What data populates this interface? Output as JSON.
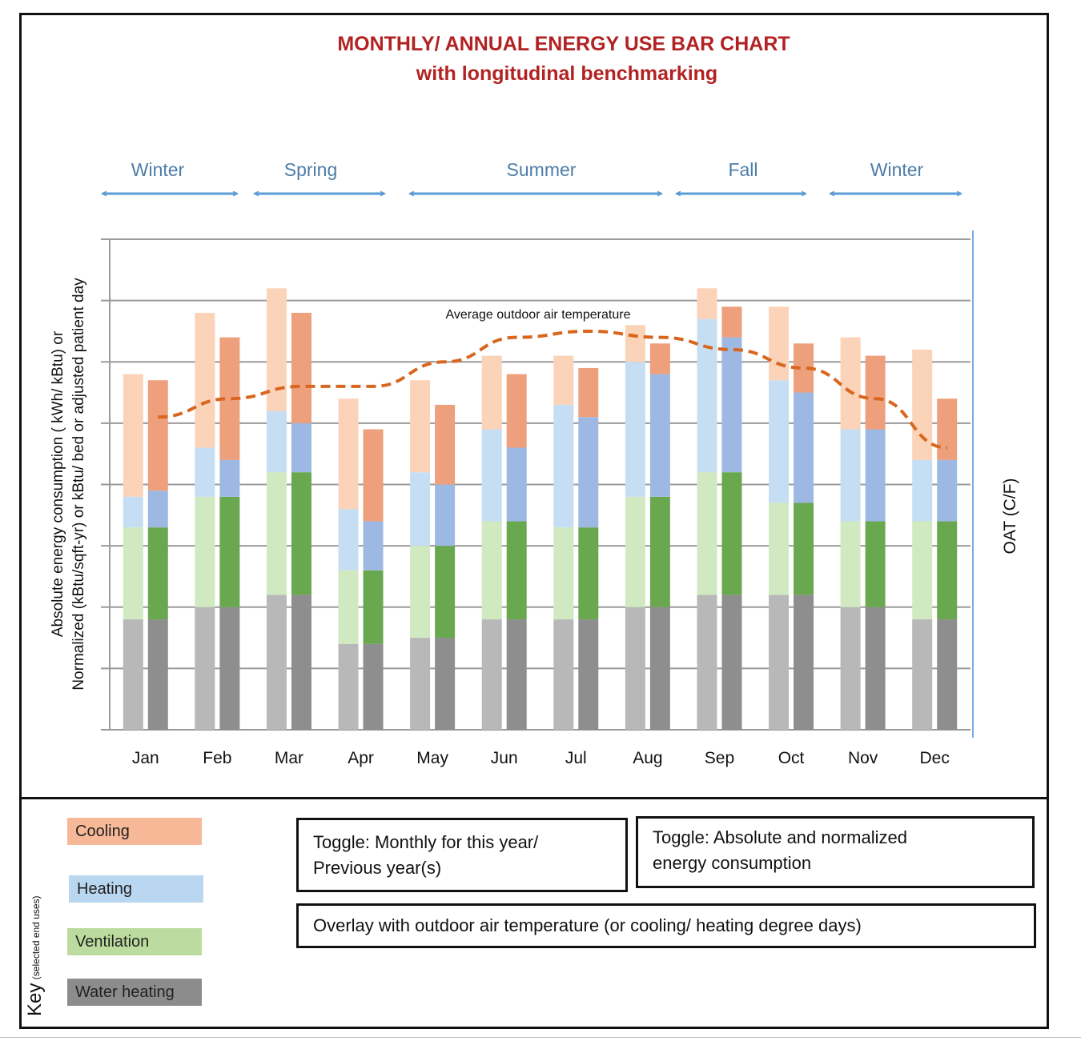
{
  "title": {
    "line1": "MONTHLY/ ANNUAL ENERGY USE BAR CHART",
    "line2": "with longitudinal benchmarking"
  },
  "seasons": [
    {
      "label": "Winter"
    },
    {
      "label": "Spring"
    },
    {
      "label": "Summer"
    },
    {
      "label": "Fall"
    },
    {
      "label": "Winter"
    }
  ],
  "axes": {
    "y_label_line1": "Absolute energy consumption ( kWh/ kBtu) or",
    "y_label_line2": "Normalized (kBtu/sqft-yr) or kBtu/ bed or adjusted patient day",
    "y2_label": "OAT (C/F)"
  },
  "annotation": "Average outdoor air temperature",
  "colors": {
    "cooling_light": "#fbd3b8",
    "cooling_dark": "#ee9f7c",
    "heating_light": "#c6def3",
    "heating_dark": "#9db9e3",
    "ventilation_light": "#d1e9c0",
    "ventilation_dark": "#6aa84f",
    "water_light": "#b8b8b8",
    "water_dark": "#8e8e8e",
    "temperature_line": "#d9661f",
    "season_arrow": "#5b9bd5",
    "title": "#b22222"
  },
  "chart_data": {
    "type": "bar",
    "stacked": true,
    "categories": [
      "Jan",
      "Feb",
      "Mar",
      "Apr",
      "May",
      "Jun",
      "Jul",
      "Aug",
      "Sep",
      "Oct",
      "Nov",
      "Dec"
    ],
    "ylim": [
      0,
      8
    ],
    "grid": true,
    "stack_order": [
      "Water heating",
      "Ventilation",
      "Heating",
      "Cooling"
    ],
    "groups": [
      {
        "name": "previous year",
        "shade": "light",
        "values": [
          [
            1.8,
            1.5,
            0.5,
            2.0
          ],
          [
            2.0,
            1.8,
            0.8,
            2.2
          ],
          [
            2.2,
            2.0,
            1.0,
            2.0
          ],
          [
            1.4,
            1.2,
            1.0,
            1.8
          ],
          [
            1.5,
            1.5,
            1.2,
            1.5
          ],
          [
            1.8,
            1.6,
            1.5,
            1.2
          ],
          [
            1.8,
            1.5,
            2.0,
            0.8
          ],
          [
            2.0,
            1.8,
            2.2,
            0.6
          ],
          [
            2.2,
            2.0,
            2.5,
            0.5
          ],
          [
            2.2,
            1.5,
            2.0,
            1.2
          ],
          [
            2.0,
            1.4,
            1.5,
            1.5
          ],
          [
            1.8,
            1.6,
            1.0,
            1.8
          ]
        ]
      },
      {
        "name": "this year",
        "shade": "dark",
        "values": [
          [
            1.8,
            1.5,
            0.6,
            1.8
          ],
          [
            2.0,
            1.8,
            0.6,
            2.0
          ],
          [
            2.2,
            2.0,
            0.8,
            1.8
          ],
          [
            1.4,
            1.2,
            0.8,
            1.5
          ],
          [
            1.5,
            1.5,
            1.0,
            1.3
          ],
          [
            1.8,
            1.6,
            1.2,
            1.2
          ],
          [
            1.8,
            1.5,
            1.8,
            0.8
          ],
          [
            2.0,
            1.8,
            2.0,
            0.5
          ],
          [
            2.2,
            2.0,
            2.2,
            0.5
          ],
          [
            2.2,
            1.5,
            1.8,
            0.8
          ],
          [
            2.0,
            1.4,
            1.5,
            1.2
          ],
          [
            1.8,
            1.6,
            1.0,
            1.0
          ]
        ]
      }
    ],
    "line": {
      "name": "Average outdoor air temperature",
      "values": [
        5.1,
        5.4,
        5.6,
        5.6,
        6.0,
        6.4,
        6.5,
        6.4,
        6.2,
        5.9,
        5.4,
        4.6
      ]
    }
  },
  "key": {
    "title": "Key",
    "subtitle": "(selected end uses)",
    "items": [
      {
        "label": "Cooling",
        "color": "#f7b897"
      },
      {
        "label": "Heating",
        "color": "#b9d7f0"
      },
      {
        "label": "Ventilation",
        "color": "#bbdc9e"
      },
      {
        "label": "Water heating",
        "color": "#8c8c8c"
      }
    ]
  },
  "toggles": {
    "monthly_line1": "Toggle: Monthly for this year/",
    "monthly_line2": "Previous year(s)",
    "absolute_line1": "Toggle:  Absolute and normalized",
    "absolute_line2": "energy consumption",
    "overlay": "Overlay with outdoor air temperature (or cooling/ heating degree days)"
  }
}
